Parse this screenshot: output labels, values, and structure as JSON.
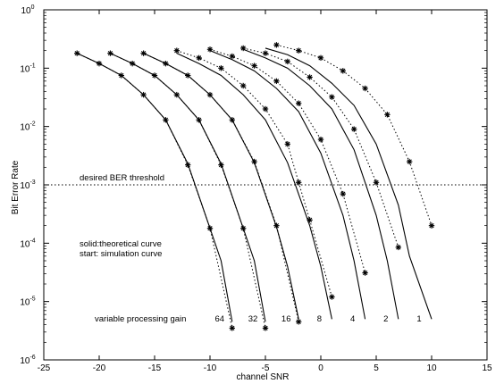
{
  "chart_data": {
    "type": "line",
    "xlabel": "channel SNR",
    "ylabel": "Bit Error Rate",
    "xlim": [
      -25,
      15
    ],
    "ylim": [
      1e-06,
      1
    ],
    "y_scale": "log",
    "x_ticks": [
      "-25",
      "-20",
      "-15",
      "-10",
      "-5",
      "0",
      "5",
      "10",
      "15"
    ],
    "y_ticks": [
      {
        "base": "10",
        "exp": "0"
      },
      {
        "base": "10",
        "exp": "-1"
      },
      {
        "base": "10",
        "exp": "-2"
      },
      {
        "base": "10",
        "exp": "-3"
      },
      {
        "base": "10",
        "exp": "-4"
      },
      {
        "base": "10",
        "exp": "-5"
      },
      {
        "base": "10",
        "exp": "-6"
      }
    ],
    "threshold": {
      "value": 0.001,
      "label": "desired BER threshold"
    },
    "annotations": {
      "legend_line1": "solid:theoretical curve",
      "legend_line2": "start: simulation curve",
      "gain_label": "variable processing gain"
    },
    "series": [
      {
        "name": "64",
        "theory": [
          [
            -22,
            0.18
          ],
          [
            -20,
            0.12
          ],
          [
            -18,
            0.075
          ],
          [
            -16,
            0.035
          ],
          [
            -14,
            0.013
          ],
          [
            -12,
            0.0023
          ],
          [
            -10,
            0.00018
          ],
          [
            -9,
            5e-05
          ],
          [
            -8,
            4.5e-06
          ]
        ],
        "sim": [
          [
            -22,
            0.18
          ],
          [
            -20,
            0.12
          ],
          [
            -18,
            0.075
          ],
          [
            -16,
            0.035
          ],
          [
            -14,
            0.013
          ],
          [
            -12,
            0.0022
          ],
          [
            -10,
            0.00018
          ],
          [
            -8,
            3.5e-06
          ]
        ]
      },
      {
        "name": "32",
        "theory": [
          [
            -19,
            0.18
          ],
          [
            -17,
            0.12
          ],
          [
            -15,
            0.075
          ],
          [
            -13,
            0.035
          ],
          [
            -11,
            0.013
          ],
          [
            -9,
            0.0023
          ],
          [
            -7,
            0.00018
          ],
          [
            -6,
            5e-05
          ],
          [
            -5,
            4.5e-06
          ]
        ],
        "sim": [
          [
            -19,
            0.18
          ],
          [
            -17,
            0.12
          ],
          [
            -15,
            0.075
          ],
          [
            -13,
            0.035
          ],
          [
            -11,
            0.013
          ],
          [
            -9,
            0.0022
          ],
          [
            -7,
            0.00018
          ],
          [
            -5,
            3.5e-06
          ]
        ]
      },
      {
        "name": "16",
        "theory": [
          [
            -16,
            0.18
          ],
          [
            -14,
            0.12
          ],
          [
            -12,
            0.075
          ],
          [
            -10,
            0.035
          ],
          [
            -8,
            0.013
          ],
          [
            -6,
            0.0024
          ],
          [
            -4,
            0.00019
          ],
          [
            -3,
            4e-05
          ],
          [
            -2,
            5e-06
          ]
        ],
        "sim": [
          [
            -16,
            0.18
          ],
          [
            -14,
            0.12
          ],
          [
            -12,
            0.075
          ],
          [
            -10,
            0.035
          ],
          [
            -8,
            0.013
          ],
          [
            -6,
            0.0025
          ],
          [
            -4,
            0.0002
          ],
          [
            -2,
            4.5e-06
          ]
        ]
      },
      {
        "name": "8",
        "theory": [
          [
            -13,
            0.18
          ],
          [
            -11,
            0.12
          ],
          [
            -9,
            0.075
          ],
          [
            -7,
            0.035
          ],
          [
            -5,
            0.013
          ],
          [
            -3,
            0.0024
          ],
          [
            -1,
            0.0002
          ],
          [
            0,
            4e-05
          ],
          [
            1,
            5e-06
          ]
        ],
        "sim": [
          [
            -13,
            0.2
          ],
          [
            -11,
            0.15
          ],
          [
            -9,
            0.1
          ],
          [
            -7,
            0.05
          ],
          [
            -5,
            0.02
          ],
          [
            -3,
            0.005
          ],
          [
            -2,
            0.0011
          ],
          [
            -1,
            0.00025
          ],
          [
            1,
            1.2e-05
          ]
        ]
      },
      {
        "name": "4",
        "theory": [
          [
            -10,
            0.2
          ],
          [
            -8,
            0.14
          ],
          [
            -6,
            0.09
          ],
          [
            -4,
            0.045
          ],
          [
            -2,
            0.018
          ],
          [
            0,
            0.0035
          ],
          [
            2,
            0.0003
          ],
          [
            3,
            5e-05
          ],
          [
            4,
            5e-06
          ]
        ],
        "sim": [
          [
            -10,
            0.21
          ],
          [
            -8,
            0.16
          ],
          [
            -6,
            0.11
          ],
          [
            -4,
            0.06
          ],
          [
            -2,
            0.025
          ],
          [
            0,
            0.006
          ],
          [
            2,
            0.0007
          ],
          [
            4,
            3.1e-05
          ]
        ]
      },
      {
        "name": "2",
        "theory": [
          [
            -7,
            0.21
          ],
          [
            -5,
            0.15
          ],
          [
            -3,
            0.1
          ],
          [
            -1,
            0.05
          ],
          [
            1,
            0.02
          ],
          [
            3,
            0.004
          ],
          [
            5,
            0.0003
          ],
          [
            6,
            5e-05
          ],
          [
            7,
            5e-06
          ]
        ],
        "sim": [
          [
            -7,
            0.22
          ],
          [
            -5,
            0.18
          ],
          [
            -3,
            0.13
          ],
          [
            -1,
            0.07
          ],
          [
            1,
            0.032
          ],
          [
            3,
            0.009
          ],
          [
            5,
            0.0011
          ],
          [
            7,
            8.5e-05
          ]
        ]
      },
      {
        "name": "1",
        "theory": [
          [
            -5,
            0.22
          ],
          [
            -3,
            0.17
          ],
          [
            -1,
            0.11
          ],
          [
            1,
            0.055
          ],
          [
            3,
            0.023
          ],
          [
            5,
            0.005
          ],
          [
            7,
            0.00045
          ],
          [
            8,
            6e-05
          ],
          [
            10,
            5e-06
          ]
        ],
        "sim": [
          [
            -4,
            0.25
          ],
          [
            -2,
            0.2
          ],
          [
            0,
            0.15
          ],
          [
            2,
            0.09
          ],
          [
            4,
            0.045
          ],
          [
            6,
            0.016
          ],
          [
            8,
            0.0025
          ],
          [
            10,
            0.0002
          ]
        ]
      }
    ]
  }
}
